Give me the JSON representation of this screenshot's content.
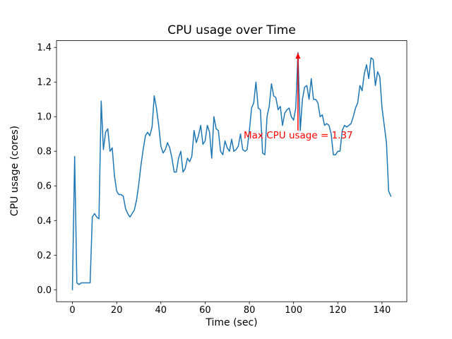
{
  "figure": {
    "background": "#ffffff"
  },
  "chart_data": {
    "type": "line",
    "title": "CPU usage over Time",
    "xlabel": "Time (sec)",
    "ylabel": "CPU usage (cores)",
    "line_color": "#1f77b4",
    "grid": false,
    "legend": "none",
    "xlim": [
      -7.2,
      151.2
    ],
    "ylim": [
      -0.069,
      1.439
    ],
    "xticks": [
      0,
      20,
      40,
      60,
      80,
      100,
      120,
      140
    ],
    "yticks": [
      0.0,
      0.2,
      0.4,
      0.6,
      0.8,
      1.0,
      1.2,
      1.4
    ],
    "x": [
      0,
      1,
      2,
      3,
      4,
      5,
      6,
      7,
      8,
      9,
      10,
      11,
      12,
      13,
      14,
      15,
      16,
      17,
      18,
      19,
      20,
      21,
      22,
      23,
      24,
      25,
      26,
      27,
      28,
      29,
      30,
      31,
      32,
      33,
      34,
      35,
      36,
      37,
      38,
      39,
      40,
      41,
      42,
      43,
      44,
      45,
      46,
      47,
      48,
      49,
      50,
      51,
      52,
      53,
      54,
      55,
      56,
      57,
      58,
      59,
      60,
      61,
      62,
      63,
      64,
      65,
      66,
      67,
      68,
      69,
      70,
      71,
      72,
      73,
      74,
      75,
      76,
      77,
      78,
      79,
      80,
      81,
      82,
      83,
      84,
      85,
      86,
      87,
      88,
      89,
      90,
      91,
      92,
      93,
      94,
      95,
      96,
      97,
      98,
      99,
      100,
      101,
      102,
      103,
      104,
      105,
      106,
      107,
      108,
      109,
      110,
      111,
      112,
      113,
      114,
      115,
      116,
      117,
      118,
      119,
      120,
      121,
      122,
      123,
      124,
      125,
      126,
      127,
      128,
      129,
      130,
      131,
      132,
      133,
      134,
      135,
      136,
      137,
      138,
      139,
      140,
      141,
      142,
      143,
      144
    ],
    "y": [
      0.0,
      0.77,
      0.04,
      0.03,
      0.04,
      0.04,
      0.04,
      0.04,
      0.04,
      0.42,
      0.44,
      0.42,
      0.41,
      1.09,
      0.81,
      0.91,
      0.93,
      0.8,
      0.82,
      0.66,
      0.57,
      0.55,
      0.55,
      0.54,
      0.47,
      0.44,
      0.42,
      0.44,
      0.46,
      0.52,
      0.61,
      0.72,
      0.81,
      0.89,
      0.91,
      0.89,
      0.94,
      1.12,
      1.05,
      0.95,
      0.83,
      0.79,
      0.81,
      0.85,
      0.82,
      0.76,
      0.68,
      0.68,
      0.76,
      0.8,
      0.68,
      0.7,
      0.76,
      0.74,
      0.77,
      0.92,
      0.85,
      0.89,
      0.95,
      0.84,
      0.86,
      0.95,
      0.91,
      0.76,
      1.0,
      0.93,
      0.92,
      0.8,
      0.78,
      0.86,
      0.82,
      0.8,
      0.87,
      0.8,
      0.81,
      0.83,
      0.9,
      0.81,
      0.8,
      0.81,
      0.92,
      1.05,
      1.08,
      1.2,
      1.05,
      1.04,
      0.79,
      0.78,
      1.0,
      1.06,
      1.19,
      1.12,
      1.11,
      1.04,
      1.06,
      0.95,
      1.02,
      1.04,
      1.05,
      1.0,
      0.98,
      1.05,
      1.37,
      0.92,
      1.1,
      1.17,
      1.18,
      1.1,
      1.22,
      1.1,
      1.1,
      1.08,
      1.0,
      1.01,
      0.95,
      0.96,
      0.95,
      0.9,
      0.78,
      0.78,
      0.8,
      0.8,
      0.92,
      0.95,
      0.94,
      0.95,
      0.96,
      1.0,
      1.05,
      1.08,
      1.18,
      1.15,
      1.25,
      1.3,
      1.22,
      1.34,
      1.33,
      1.18,
      1.26,
      1.23,
      1.05,
      0.95,
      0.85,
      0.57,
      0.54
    ],
    "annotation": {
      "text": "Max CPU usage = 1.37",
      "color": "#ff0000",
      "point_x": 102,
      "point_y": 1.37,
      "arrow": {
        "x": 102,
        "from_y": 0.92,
        "to_y": 1.37
      }
    }
  }
}
